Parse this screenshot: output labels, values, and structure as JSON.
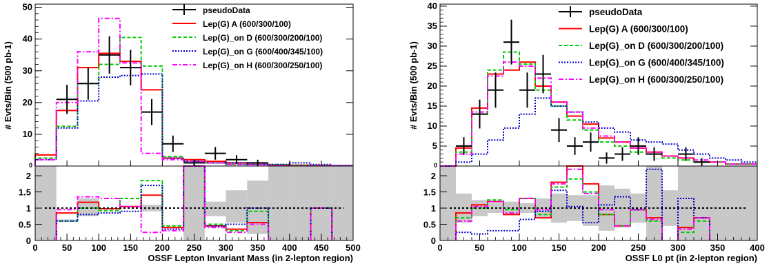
{
  "chart_data": [
    {
      "type": "step",
      "title": "",
      "xlabel": "OSSF Lepton Invariant Mass (in 2-lepton region)",
      "ylabel": "# Evts/Bin (500 pb-1)",
      "xlim": [
        0,
        500
      ],
      "ylim": [
        0,
        51
      ],
      "ratio_ylim": [
        0,
        2.3
      ],
      "xticks": [
        "0",
        "50",
        "100",
        "150",
        "200",
        "250",
        "300",
        "350",
        "400",
        "450",
        "500"
      ],
      "yticks": [
        "10",
        "20",
        "30",
        "40",
        "50"
      ],
      "ratio_yticks": [
        "0",
        "0.5",
        "1",
        "1.5",
        "2"
      ],
      "bin_edges": [
        0,
        33.33,
        66.67,
        100,
        133.33,
        166.67,
        200,
        233.33,
        266.67,
        300,
        333.33,
        366.67,
        400,
        433.33,
        466.67,
        500
      ],
      "legend": {
        "position": "top-right"
      },
      "pseudo_data": {
        "name": "pseudoData",
        "x": [
          50,
          83.3,
          116.7,
          150,
          183.3,
          216.7,
          250,
          283.3,
          316.7,
          350
        ],
        "y": [
          21,
          26,
          35,
          31,
          17,
          7,
          1,
          4,
          2,
          1
        ],
        "err": [
          4.6,
          5.1,
          5.9,
          5.6,
          4.1,
          2.6,
          1,
          2,
          1.4,
          1
        ]
      },
      "series": [
        {
          "name": "Lep(G) A (600/300/100)",
          "color": "#ff0000",
          "style": "solid",
          "values": [
            3.5,
            17.5,
            31,
            35.5,
            33,
            24,
            2.5,
            2,
            1.5,
            1,
            0.5,
            0.3,
            0.3,
            0.2,
            0.1
          ]
        },
        {
          "name": "Lep(G)_on D (600/300/200/100)",
          "color": "#00cc00",
          "style": "dashed",
          "values": [
            2.5,
            12.5,
            26,
            32,
            40.5,
            31.5,
            3,
            1.5,
            1,
            0.5,
            0.5,
            0.5,
            0.3,
            0.2,
            0.1
          ]
        },
        {
          "name": "Lep(G)_on G (600/400/345/100)",
          "color": "#0000cc",
          "style": "dotted",
          "values": [
            2,
            12,
            20.5,
            28,
            28.5,
            29,
            2.5,
            1.5,
            1,
            1,
            0.5,
            0.5,
            1,
            0.5,
            0.2
          ]
        },
        {
          "name": "Lep(G)_on H (600/300/250/100)",
          "color": "#ff00ff",
          "style": "dashdot",
          "values": [
            2,
            20,
            36,
            46.5,
            32.5,
            4,
            2,
            1.5,
            1,
            0.5,
            0.5,
            0.2,
            0.1,
            0.1,
            0.1
          ]
        }
      ],
      "ratio_band": [
        2.3,
        0.65,
        1.3,
        0.7,
        0.8,
        1.1,
        0.6,
        2.3,
        1.2,
        1.55,
        1.85,
        2.3,
        2.3,
        2.3,
        2.3
      ],
      "ratio_band_low": [
        0,
        0.6,
        0.75,
        1.05,
        1.05,
        0.9,
        1.3,
        0,
        0.75,
        0.55,
        0.2,
        0,
        0,
        0,
        0
      ],
      "ratio_series": [
        {
          "name": "Lep(G) A (600/300/100)",
          "values": [
            null,
            0.85,
            1.18,
            0.98,
            1.05,
            1.4,
            0.4,
            2.3,
            0.45,
            0.35,
            0.55,
            null,
            null,
            1,
            null
          ]
        },
        {
          "name": "Lep(G)_on D (600/300/200/100)",
          "values": [
            null,
            0.6,
            1.0,
            0.92,
            1.3,
            1.85,
            0.45,
            2.3,
            0.5,
            0.3,
            0.9,
            null,
            null,
            1,
            null
          ]
        },
        {
          "name": "Lep(G)_on G (600/400/345/100)",
          "values": [
            null,
            0.6,
            0.8,
            0.85,
            0.9,
            1.7,
            0.35,
            2.3,
            0.45,
            0.5,
            1.0,
            null,
            null,
            1,
            null
          ]
        },
        {
          "name": "Lep(G)_on H (600/300/250/100)",
          "values": [
            null,
            0.95,
            1.35,
            1.3,
            1.05,
            0.25,
            0.3,
            2.3,
            0.4,
            0.25,
            0.5,
            null,
            null,
            1,
            null
          ]
        }
      ]
    },
    {
      "type": "step",
      "title": "",
      "xlabel": "OSSF L0 pt (in 2-lepton region)",
      "ylabel": "# Evts/Bin (500 pb-1)",
      "xlim": [
        0,
        400
      ],
      "ylim": [
        0,
        40.5
      ],
      "ratio_ylim": [
        0,
        2.3
      ],
      "xticks": [
        "0",
        "50",
        "100",
        "150",
        "200",
        "250",
        "300",
        "350",
        "400"
      ],
      "yticks": [
        "5",
        "10",
        "15",
        "20",
        "25",
        "30",
        "35",
        "40"
      ],
      "ratio_yticks": [
        "0",
        "0.5",
        "1",
        "1.5",
        "2"
      ],
      "bin_edges": [
        0,
        20,
        40,
        60,
        80,
        100,
        120,
        140,
        160,
        180,
        200,
        220,
        240,
        260,
        280,
        300,
        320,
        340,
        360,
        380,
        400
      ],
      "legend": {
        "position": "top-right"
      },
      "pseudo_data": {
        "name": "pseudoData",
        "x": [
          30,
          50,
          70,
          90,
          110,
          130,
          150,
          170,
          190,
          210,
          230,
          250,
          270,
          310,
          330
        ],
        "y": [
          5,
          13,
          19,
          31,
          19,
          23,
          9,
          5,
          6,
          2,
          3,
          5,
          3,
          3,
          1
        ],
        "err": [
          2.2,
          3.6,
          4.4,
          5.6,
          4.4,
          4.8,
          3,
          2.2,
          2.4,
          1.4,
          1.7,
          2.2,
          1.7,
          1.7,
          1
        ]
      },
      "series": [
        {
          "name": "Lep(G) A (600/300/100)",
          "color": "#ff0000",
          "style": "solid",
          "values": [
            0,
            4.5,
            14.5,
            23,
            24,
            26,
            20,
            16,
            12.5,
            10.5,
            7,
            6,
            4.5,
            3.5,
            2.5,
            2,
            1,
            1,
            0.5,
            0.5
          ]
        },
        {
          "name": "Lep(G)_on D (600/300/200/100)",
          "color": "#00cc00",
          "style": "dashed",
          "values": [
            0,
            3.5,
            13,
            24,
            28.5,
            25.5,
            19,
            15,
            11.5,
            9,
            6,
            5,
            3.5,
            3,
            2,
            1.5,
            1,
            1,
            0.5,
            0.5
          ]
        },
        {
          "name": "Lep(G)_on G (600/400/345/100)",
          "color": "#0000cc",
          "style": "dotted",
          "values": [
            0,
            1,
            3,
            6.5,
            9.5,
            13,
            17,
            15,
            13.5,
            11,
            9.5,
            8.5,
            6.5,
            6,
            5.5,
            4,
            3,
            2,
            1.5,
            1
          ]
        },
        {
          "name": "Lep(G)_on H (600/300/250/100)",
          "color": "#ff00ff",
          "style": "dashdot",
          "values": [
            0,
            3,
            13.5,
            22.5,
            26,
            25,
            22,
            16,
            13.5,
            9.5,
            7.5,
            6,
            4.5,
            3.5,
            2.5,
            2,
            1.5,
            1,
            0.5,
            0.5
          ]
        }
      ],
      "ratio_band": [
        2.3,
        1.45,
        1.25,
        1.15,
        1.2,
        1.15,
        1.3,
        1.45,
        1.4,
        1.4,
        1.7,
        1.6,
        1.45,
        2.3,
        1.55,
        2.3,
        2.3,
        2.3,
        2.3,
        2.3
      ],
      "ratio_band_low": [
        0,
        0.55,
        0.75,
        0.85,
        0.8,
        0.85,
        0.7,
        0.55,
        0.6,
        0.45,
        0.3,
        0.4,
        0.55,
        0,
        0.45,
        0,
        0,
        0,
        0,
        0
      ],
      "ratio_series": [
        {
          "name": "Lep(G) A (600/300/100)",
          "values": [
            null,
            0.85,
            1.1,
            1.2,
            0.8,
            1.3,
            0.7,
            1.8,
            2.5,
            1.75,
            0.8,
            0.45,
            0.95,
            0.7,
            null,
            0.4,
            0.7,
            null,
            null,
            null
          ]
        },
        {
          "name": "Lep(G)_on D (600/300/200/100)",
          "values": [
            null,
            0.7,
            1.0,
            1.25,
            0.95,
            1.3,
            0.8,
            1.65,
            1.9,
            1.5,
            0.8,
            0.45,
            0.95,
            0.6,
            null,
            0.25,
            0.6,
            null,
            null,
            null
          ]
        },
        {
          "name": "Lep(G)_on G (600/400/345/100)",
          "values": [
            null,
            0.25,
            0.2,
            0.3,
            0.3,
            0.65,
            0.9,
            1.55,
            1.05,
            0.55,
            1.1,
            1.35,
            0.95,
            2.2,
            null,
            1.3,
            0.7,
            null,
            null,
            null
          ]
        },
        {
          "name": "Lep(G)_on H (600/300/250/100)",
          "values": [
            null,
            0.6,
            1.05,
            1.2,
            0.85,
            1.3,
            0.95,
            1.75,
            2.2,
            1.45,
            0.95,
            0.45,
            0.95,
            0.65,
            null,
            0.35,
            0.7,
            null,
            null,
            null
          ]
        }
      ]
    }
  ]
}
